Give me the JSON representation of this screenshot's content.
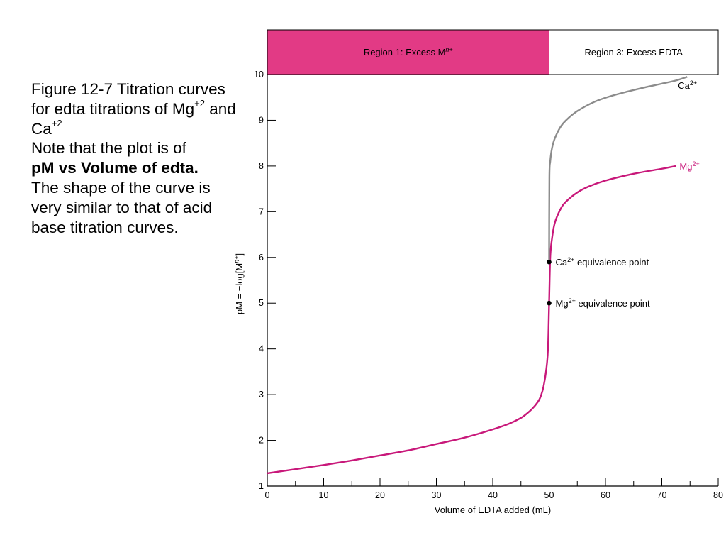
{
  "caption": {
    "line1": "Figure 12-7 Titration curves for edta titrations of Mg",
    "sup1": "+2",
    "line2": " and Ca",
    "sup2": "+2",
    "note": "Note that the plot is of",
    "bold": "pM vs Volume of edta.",
    "rest": "The shape of the curve is very similar to that of acid base titration curves."
  },
  "colors": {
    "region1": "#e23a85",
    "mg": "#c8187a",
    "ca": "#8c8c8c",
    "axis": "#000000"
  },
  "chart_data": {
    "type": "line",
    "xlabel": "Volume of EDTA added (mL)",
    "ylabel_prefix": "pM = −log[M",
    "ylabel_sup": "n+",
    "ylabel_suffix": "]",
    "xlim": [
      0,
      80
    ],
    "ylim": [
      1,
      10
    ],
    "xticks": [
      "0",
      "10",
      "20",
      "30",
      "40",
      "50",
      "60",
      "70",
      "80"
    ],
    "yticks": [
      "1",
      "2",
      "3",
      "4",
      "5",
      "6",
      "7",
      "8",
      "9",
      "10"
    ],
    "grid": false,
    "regions": [
      {
        "label": "Region 1: Excess M",
        "sup": "n+",
        "x_from": 0,
        "x_to": 50
      },
      {
        "label": "Region 3: Excess EDTA",
        "sup": "",
        "x_from": 50,
        "x_to": 80
      }
    ],
    "series": [
      {
        "name": "Mg",
        "sup": "2+",
        "x": [
          0,
          5,
          10,
          15,
          20,
          25,
          30,
          35,
          40,
          43,
          45,
          46,
          47,
          48,
          48.5,
          49,
          49.5,
          49.8,
          50,
          50.2,
          50.5,
          51,
          52,
          53,
          55,
          57,
          60,
          65,
          70,
          72.5
        ],
        "y": [
          1.28,
          1.37,
          1.46,
          1.56,
          1.67,
          1.78,
          1.92,
          2.06,
          2.24,
          2.37,
          2.49,
          2.58,
          2.69,
          2.84,
          2.96,
          3.17,
          3.55,
          4.0,
          5.0,
          6.0,
          6.4,
          6.75,
          7.05,
          7.22,
          7.42,
          7.55,
          7.68,
          7.83,
          7.94,
          8.0
        ]
      },
      {
        "name": "Ca",
        "sup": "2+",
        "x": [
          50,
          50.05,
          50.2,
          50.5,
          51,
          52,
          53,
          55,
          58,
          61,
          64,
          67,
          70,
          72.5,
          74.5
        ],
        "y": [
          5.9,
          7.75,
          8.1,
          8.38,
          8.6,
          8.85,
          9.0,
          9.2,
          9.4,
          9.53,
          9.63,
          9.72,
          9.8,
          9.87,
          9.95
        ]
      }
    ],
    "annotations": [
      {
        "text": "Ca",
        "sup": "2+",
        "suffix": " equivalence point",
        "x": 50,
        "y": 5.9
      },
      {
        "text": "Mg",
        "sup": "2+",
        "suffix": " equivalence point",
        "x": 50,
        "y": 5.0
      }
    ]
  }
}
